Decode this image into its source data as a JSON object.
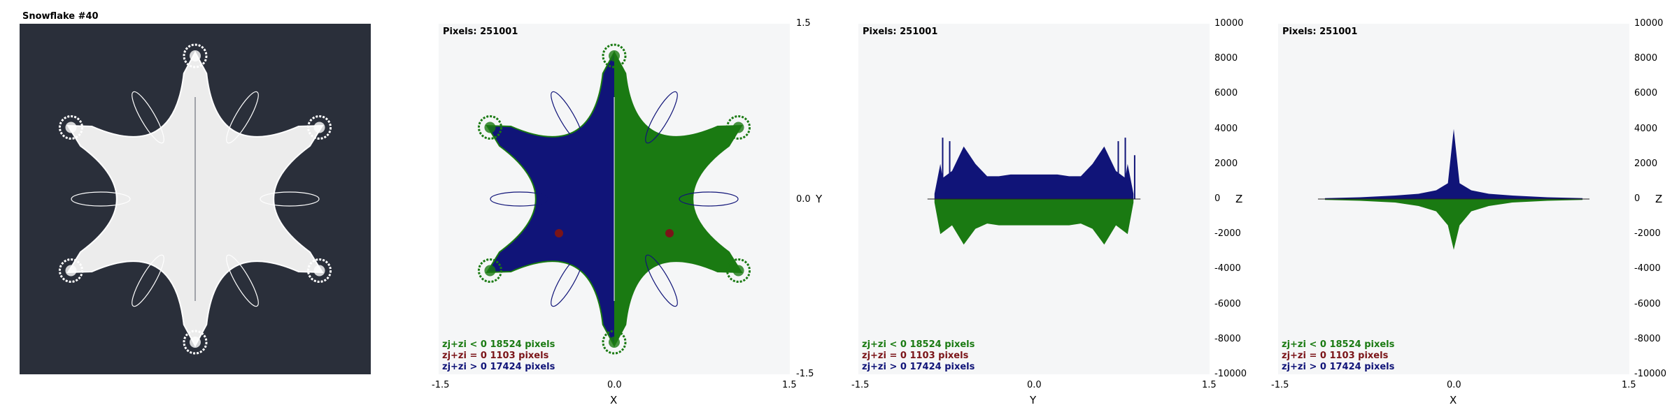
{
  "colors": {
    "negative": "#1a7a12",
    "zero": "#7a1418",
    "positive": "#101478",
    "dark_bg": "#2a2f3a",
    "light_bg": "#f5f6f7"
  },
  "chart_data": [
    {
      "type": "other",
      "title": "Snowflake #40",
      "description_source": "rendered fractal (monochrome on dark)"
    },
    {
      "type": "scatter",
      "pixels_label": "Pixels: 251001",
      "xlabel": "X",
      "ylabel": "Y",
      "xlim": [
        -1.5,
        1.5
      ],
      "ylim": [
        -1.5,
        1.5
      ],
      "x_ticks": [
        "-1.5",
        "0.0",
        "1.5"
      ],
      "y_ticks": [
        "1.5",
        "0.0",
        "-1.5"
      ],
      "legend": [
        {
          "label": "zj+zi < 0",
          "count": "18524 pixels",
          "color_key": "negative"
        },
        {
          "label": "zj+zi = 0",
          "count": "1103 pixels",
          "color_key": "zero"
        },
        {
          "label": "zj+zi > 0",
          "count": "17424 pixels",
          "color_key": "positive"
        }
      ]
    },
    {
      "type": "bar",
      "pixels_label": "Pixels: 251001",
      "xlabel": "Y",
      "ylabel": "Z",
      "xlim": [
        -1.5,
        1.5
      ],
      "ylim": [
        -10000,
        10000
      ],
      "x_ticks": [
        "-1.5",
        "0.0",
        "1.5"
      ],
      "y_ticks": [
        "10000",
        "8000",
        "6000",
        "4000",
        "2000",
        "0",
        "-2000",
        "-4000",
        "-6000",
        "-8000",
        "-10000"
      ],
      "legend": [
        {
          "label": "zj+zi < 0",
          "count": "18524 pixels",
          "color_key": "negative"
        },
        {
          "label": "zj+zi = 0",
          "count": "1103 pixels",
          "color_key": "zero"
        },
        {
          "label": "zj+zi > 0",
          "count": "17424 pixels",
          "color_key": "positive"
        }
      ],
      "positive_profile": {
        "x": [
          -0.85,
          -0.8,
          -0.78,
          -0.7,
          -0.6,
          -0.5,
          -0.4,
          -0.3,
          -0.2,
          -0.1,
          0.0,
          0.1,
          0.2,
          0.3,
          0.4,
          0.5,
          0.6,
          0.7,
          0.78,
          0.8,
          0.85
        ],
        "y": [
          300,
          2000,
          1200,
          1600,
          3000,
          2000,
          1300,
          1300,
          1400,
          1400,
          1400,
          1400,
          1400,
          1300,
          1300,
          2000,
          3000,
          1600,
          1200,
          2000,
          300
        ]
      },
      "negative_profile": {
        "x": [
          -0.85,
          -0.8,
          -0.7,
          -0.6,
          -0.5,
          -0.4,
          -0.3,
          -0.2,
          -0.1,
          0.0,
          0.1,
          0.2,
          0.3,
          0.4,
          0.5,
          0.6,
          0.7,
          0.8,
          0.85
        ],
        "y": [
          -200,
          -2000,
          -1500,
          -2600,
          -1700,
          -1400,
          -1500,
          -1500,
          -1500,
          -1500,
          -1500,
          -1500,
          -1500,
          -1400,
          -1700,
          -2600,
          -1500,
          -2000,
          -200
        ]
      },
      "spikes": [
        {
          "x": -0.78,
          "y": 3500
        },
        {
          "x": -0.72,
          "y": 3300
        },
        {
          "x": 0.72,
          "y": 3300
        },
        {
          "x": 0.78,
          "y": 3500
        },
        {
          "x": 0.86,
          "y": 2500
        }
      ]
    },
    {
      "type": "bar",
      "pixels_label": "Pixels: 251001",
      "xlabel": "X",
      "ylabel": "Z",
      "xlim": [
        -1.5,
        1.5
      ],
      "ylim": [
        -10000,
        10000
      ],
      "x_ticks": [
        "-1.5",
        "0.0",
        "1.5"
      ],
      "y_ticks": [
        "10000",
        "8000",
        "6000",
        "4000",
        "2000",
        "0",
        "-2000",
        "-4000",
        "-6000",
        "-8000",
        "-10000"
      ],
      "legend": [
        {
          "label": "zj+zi < 0",
          "count": "18524 pixels",
          "color_key": "negative"
        },
        {
          "label": "zj+zi = 0",
          "count": "1103 pixels",
          "color_key": "zero"
        },
        {
          "label": "zj+zi > 0",
          "count": "17424 pixels",
          "color_key": "positive"
        }
      ],
      "positive_profile": {
        "x": [
          -1.1,
          -0.8,
          -0.5,
          -0.3,
          -0.15,
          -0.05,
          0.0,
          0.05,
          0.15,
          0.3,
          0.5,
          0.8,
          1.1
        ],
        "y": [
          50,
          100,
          200,
          300,
          500,
          900,
          4000,
          900,
          500,
          300,
          200,
          100,
          50
        ]
      },
      "negative_profile": {
        "x": [
          -1.1,
          -0.8,
          -0.5,
          -0.3,
          -0.15,
          -0.05,
          0.0,
          0.05,
          0.15,
          0.3,
          0.5,
          0.8,
          1.1
        ],
        "y": [
          -50,
          -100,
          -200,
          -400,
          -700,
          -1500,
          -2900,
          -1500,
          -700,
          -400,
          -200,
          -100,
          -50
        ]
      }
    }
  ]
}
